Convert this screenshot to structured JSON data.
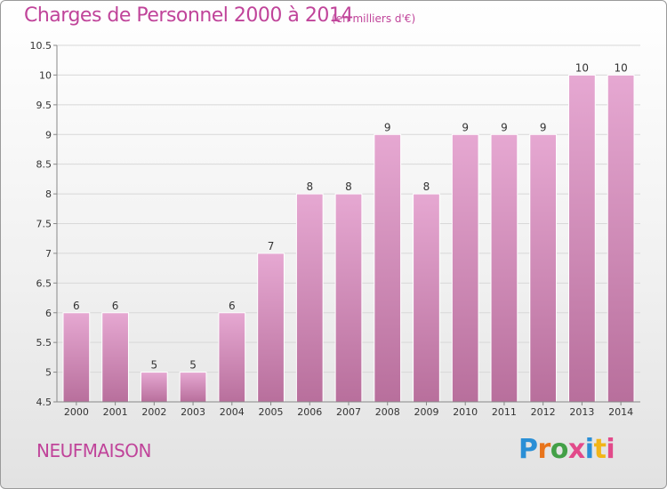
{
  "header": {
    "title": "Charges de Personnel 2000 à 2014",
    "subtitle": "(en milliers d'€)"
  },
  "footer": {
    "commune": "NEUFMAISON",
    "logo_text": "Proxiti",
    "logo_colors": [
      "#2a8fd6",
      "#e8741b",
      "#43a047",
      "#e24a8a",
      "#2a8fd6",
      "#f2b517",
      "#e24a8a"
    ]
  },
  "chart_data": {
    "type": "bar",
    "title": "Charges de Personnel 2000 à 2014",
    "subtitle": "(en milliers d'€)",
    "xlabel": "",
    "ylabel": "",
    "ylim": [
      4.5,
      10.5
    ],
    "yticks": [
      "4.5",
      "5",
      "5.5",
      "6",
      "6.5",
      "7",
      "7.5",
      "8",
      "8.5",
      "9",
      "9.5",
      "10",
      "10.5"
    ],
    "grid": true,
    "categories": [
      "2000",
      "2001",
      "2002",
      "2003",
      "2004",
      "2005",
      "2006",
      "2007",
      "2008",
      "2009",
      "2010",
      "2011",
      "2012",
      "2013",
      "2014"
    ],
    "values": [
      6,
      6,
      5,
      5,
      6,
      7,
      8,
      8,
      9,
      8,
      9,
      9,
      9,
      10,
      10
    ],
    "data_labels": [
      "6",
      "6",
      "5",
      "5",
      "6",
      "7",
      "8",
      "8",
      "9",
      "8",
      "9",
      "9",
      "9",
      "10",
      "10"
    ],
    "bar_color_top": "#e6a8d2",
    "bar_color_bottom": "#b86f9c"
  }
}
